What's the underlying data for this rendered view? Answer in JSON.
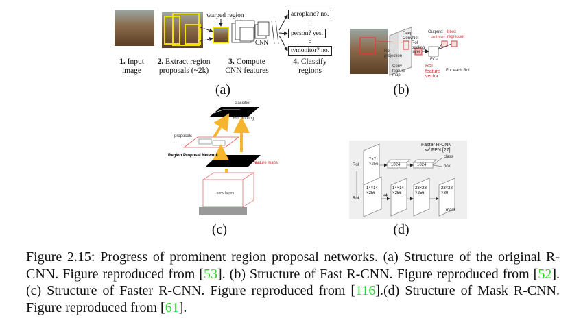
{
  "figure": {
    "panel_a": {
      "label": "(a)",
      "warped": "warped region",
      "cnn": "CNN",
      "outputs": [
        "aeroplane? no.",
        "person? yes.",
        "tvmonitor? no."
      ],
      "steps": [
        {
          "num": "1.",
          "text": "Input image"
        },
        {
          "num": "2.",
          "text": "Extract region proposals (~2k)"
        },
        {
          "num": "3.",
          "text": "Compute CNN features"
        },
        {
          "num": "4.",
          "text": "Classify regions"
        }
      ]
    },
    "panel_b": {
      "label": "(b)",
      "convnet": "Deep ConvNet",
      "projection": "RoI projection",
      "pool": "RoI pooling layer",
      "featmap": "Conv feature map",
      "fcs": "FCs",
      "fvec": "RoI feature vector",
      "outputs": "Outputs:",
      "softmax": "softmax",
      "bbox": "bbox regressor",
      "each": "For each RoI"
    },
    "panel_c": {
      "label": "(c)",
      "classifier": "classifier",
      "roipool": "RoI pooling",
      "proposals": "proposals",
      "rpn": "Region Proposal Network",
      "featmaps": "feature maps",
      "conv": "conv layers"
    },
    "panel_d": {
      "label": "(d)",
      "title": "Faster R-CNN",
      "fpn": "w/ FPN [27]",
      "roi1": "RoI",
      "b1": "7×7 ×256",
      "fc1": "1024",
      "fc2": "1024",
      "cls": "class",
      "box": "box",
      "roi2": "RoI",
      "m1": "14×14 ×256",
      "x4": "×4",
      "m2": "14×14 ×256",
      "m3": "28×28 ×256",
      "m4": "28×28 ×80",
      "mask": "mask"
    }
  },
  "caption": {
    "parts": [
      "Figure 2.15: Progress of prominent region proposal networks. (a) Structure of the original R-CNN. Figure reproduced from [",
      "53",
      "]. (b) Structure of Fast R-CNN. Figure reproduced from [",
      "52",
      "]. (c) Structure of Faster R-CNN. Figure reproduced from [",
      "116",
      "].(d) Structure of Mask R-CNN. Figure reproduced from [",
      "61",
      "]."
    ]
  }
}
